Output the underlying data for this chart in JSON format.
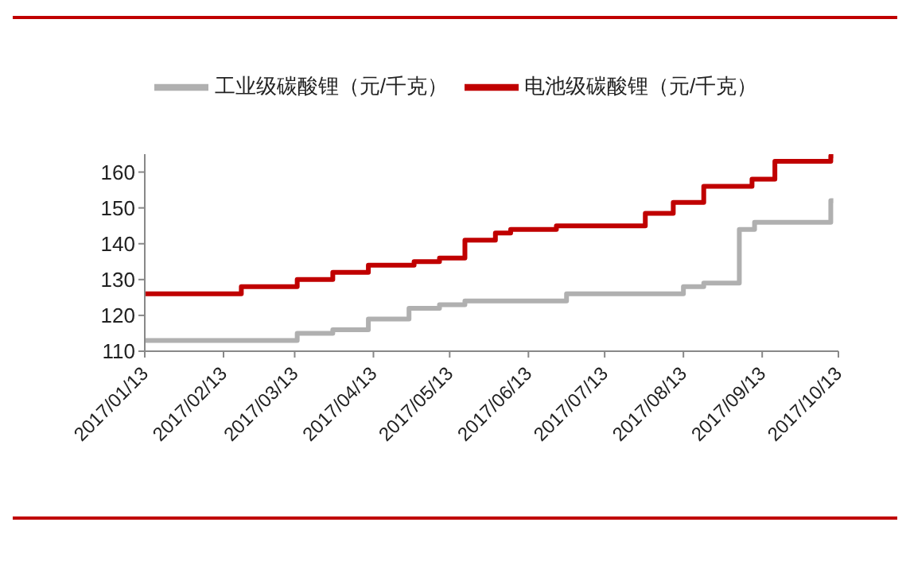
{
  "chart_data": {
    "type": "step",
    "xlim": [
      "2017-01-13",
      "2017-10-13"
    ],
    "xticks": [
      {
        "value": "2017-01-13",
        "label": "2017/01/13"
      },
      {
        "value": "2017-02-13",
        "label": "2017/02/13"
      },
      {
        "value": "2017-03-13",
        "label": "2017/03/13"
      },
      {
        "value": "2017-04-13",
        "label": "2017/04/13"
      },
      {
        "value": "2017-05-13",
        "label": "2017/05/13"
      },
      {
        "value": "2017-06-13",
        "label": "2017/06/13"
      },
      {
        "value": "2017-07-13",
        "label": "2017/07/13"
      },
      {
        "value": "2017-08-13",
        "label": "2017/08/13"
      },
      {
        "value": "2017-09-13",
        "label": "2017/09/13"
      },
      {
        "value": "2017-10-13",
        "label": "2017/10/13"
      }
    ],
    "ylim": [
      110,
      165
    ],
    "yticks": [
      110,
      120,
      130,
      140,
      150,
      160
    ],
    "grid": false,
    "legend": "top",
    "marker": "none",
    "line_style": "solid",
    "series": [
      {
        "name": "工业级碳酸锂（元/千克）",
        "color": "#b0b0b0",
        "x": [
          "2017-01-13",
          "2017-03-14",
          "2017-03-28",
          "2017-04-11",
          "2017-04-27",
          "2017-05-09",
          "2017-05-19",
          "2017-06-28",
          "2017-08-13",
          "2017-08-21",
          "2017-09-04",
          "2017-09-10",
          "2017-10-10",
          "2017-10-11"
        ],
        "values": [
          113,
          115,
          116,
          119,
          122,
          123,
          124,
          126,
          128,
          129,
          144,
          146,
          152,
          152
        ]
      },
      {
        "name": "电池级碳酸锂（元/千克）",
        "color": "#c00000",
        "x": [
          "2017-01-13",
          "2017-02-20",
          "2017-03-14",
          "2017-03-28",
          "2017-04-11",
          "2017-04-29",
          "2017-05-09",
          "2017-05-19",
          "2017-05-31",
          "2017-06-06",
          "2017-06-24",
          "2017-07-29",
          "2017-08-09",
          "2017-08-21",
          "2017-09-09",
          "2017-09-18",
          "2017-10-10",
          "2017-10-11"
        ],
        "values": [
          126,
          128,
          130,
          132,
          134,
          135,
          136,
          141,
          143,
          144,
          145,
          148.5,
          151.5,
          156,
          158,
          163,
          164.5,
          164.5
        ]
      }
    ]
  }
}
